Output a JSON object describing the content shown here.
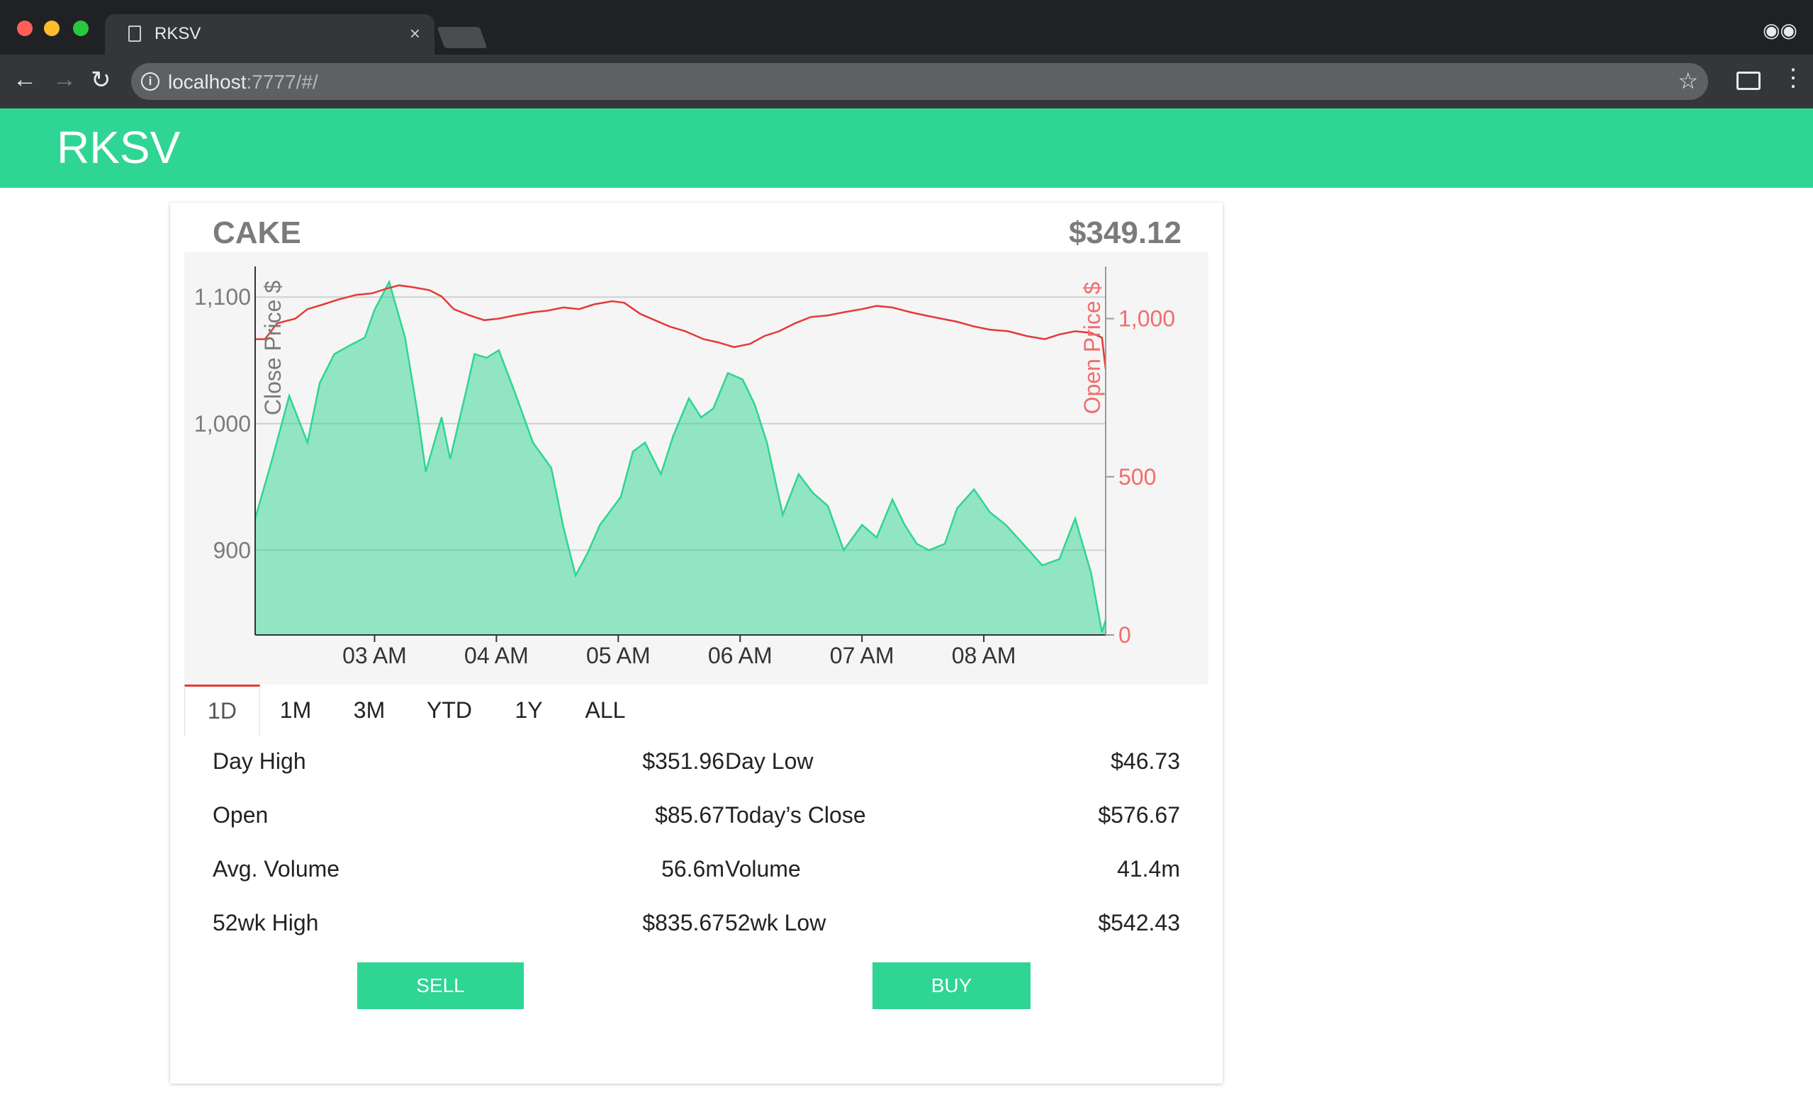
{
  "browser": {
    "tab_title": "RKSV",
    "tab_close": "×",
    "url_host": "localhost",
    "url_path": ":7777/#/",
    "icons": [
      "back-arrow-icon",
      "forward-arrow-icon",
      "reload-icon",
      "info-icon",
      "star-icon",
      "cast-icon",
      "menu-icon",
      "incognito-icon",
      "page-icon"
    ]
  },
  "app": {
    "title": "RKSV",
    "brand_color": "#2fd592"
  },
  "stock": {
    "ticker": "CAKE",
    "price": "$349.12"
  },
  "range_tabs": [
    "1D",
    "1M",
    "3M",
    "YTD",
    "1Y",
    "ALL"
  ],
  "active_tab": "1D",
  "stats": {
    "left": [
      {
        "label": "Day High",
        "value": "$351.96"
      },
      {
        "label": "Open",
        "value": "$85.67"
      },
      {
        "label": "Avg. Volume",
        "value": "56.6m"
      },
      {
        "label": "52wk High",
        "value": "$835.67"
      }
    ],
    "right": [
      {
        "label": "Day Low",
        "value": "$46.73"
      },
      {
        "label": "Today’s Close",
        "value": "$576.67"
      },
      {
        "label": "Volume",
        "value": "41.4m"
      },
      {
        "label": "52wk Low",
        "value": "$542.43"
      }
    ]
  },
  "actions": {
    "sell": "SELL",
    "buy": "BUY"
  },
  "chart_data": {
    "type": "area",
    "xlabel": "",
    "x_ticks": [
      "03 AM",
      "04 AM",
      "05 AM",
      "06 AM",
      "07 AM",
      "08 AM"
    ],
    "x_tick_hours": [
      3,
      4,
      5,
      6,
      7,
      8
    ],
    "x_range_hours": [
      2.02,
      9.0
    ],
    "y_left": {
      "label": "Close Price $",
      "ticks": [
        1100,
        1000,
        900
      ],
      "range": [
        833,
        1113
      ]
    },
    "y_right": {
      "label": "Open Price $",
      "ticks": [
        1000,
        500,
        0
      ],
      "range": [
        0,
        1120
      ]
    },
    "grid": true,
    "series": [
      {
        "name": "Close Price $",
        "axis": "left",
        "color": "#2fd592",
        "x": [
          2.02,
          2.16,
          2.3,
          2.45,
          2.55,
          2.67,
          2.8,
          2.92,
          3.0,
          3.12,
          3.25,
          3.35,
          3.42,
          3.55,
          3.62,
          3.75,
          3.82,
          3.92,
          4.02,
          4.15,
          4.3,
          4.45,
          4.55,
          4.65,
          4.75,
          4.85,
          5.02,
          5.12,
          5.22,
          5.35,
          5.45,
          5.58,
          5.68,
          5.78,
          5.9,
          6.02,
          6.12,
          6.22,
          6.35,
          6.48,
          6.6,
          6.72,
          6.85,
          7.0,
          7.12,
          7.25,
          7.35,
          7.45,
          7.55,
          7.68,
          7.78,
          7.92,
          8.05,
          8.18,
          8.35,
          8.48,
          8.62,
          8.75,
          8.88,
          8.97,
          9.0
        ],
        "values": [
          925,
          972,
          1022,
          985,
          1032,
          1055,
          1062,
          1068,
          1090,
          1112,
          1068,
          1010,
          962,
          1005,
          972,
          1025,
          1055,
          1052,
          1058,
          1025,
          985,
          965,
          918,
          880,
          898,
          920,
          942,
          978,
          985,
          960,
          990,
          1020,
          1005,
          1012,
          1040,
          1035,
          1015,
          985,
          928,
          960,
          945,
          935,
          900,
          920,
          910,
          940,
          920,
          905,
          900,
          905,
          933,
          948,
          930,
          920,
          902,
          888,
          893,
          925,
          882,
          835,
          845
        ]
      },
      {
        "name": "Open Price $",
        "axis": "right",
        "color": "#e53935",
        "x": [
          2.02,
          2.1,
          2.2,
          2.35,
          2.45,
          2.58,
          2.7,
          2.85,
          2.98,
          3.1,
          3.2,
          3.3,
          3.45,
          3.55,
          3.65,
          3.78,
          3.9,
          4.02,
          4.15,
          4.3,
          4.42,
          4.55,
          4.68,
          4.8,
          4.95,
          5.05,
          5.18,
          5.3,
          5.42,
          5.55,
          5.7,
          5.82,
          5.95,
          6.08,
          6.2,
          6.32,
          6.45,
          6.58,
          6.72,
          6.85,
          7.0,
          7.12,
          7.25,
          7.4,
          7.52,
          7.65,
          7.78,
          7.92,
          8.05,
          8.2,
          8.35,
          8.5,
          8.62,
          8.75,
          8.88,
          8.97,
          9.0
        ],
        "values": [
          935,
          935,
          985,
          1000,
          1030,
          1045,
          1060,
          1075,
          1080,
          1095,
          1105,
          1100,
          1090,
          1070,
          1030,
          1010,
          995,
          1000,
          1010,
          1020,
          1025,
          1035,
          1030,
          1045,
          1055,
          1050,
          1015,
          995,
          975,
          960,
          935,
          925,
          910,
          920,
          945,
          960,
          985,
          1005,
          1010,
          1020,
          1030,
          1040,
          1035,
          1020,
          1010,
          1000,
          990,
          975,
          965,
          960,
          945,
          935,
          950,
          960,
          955,
          940,
          840
        ]
      }
    ]
  }
}
